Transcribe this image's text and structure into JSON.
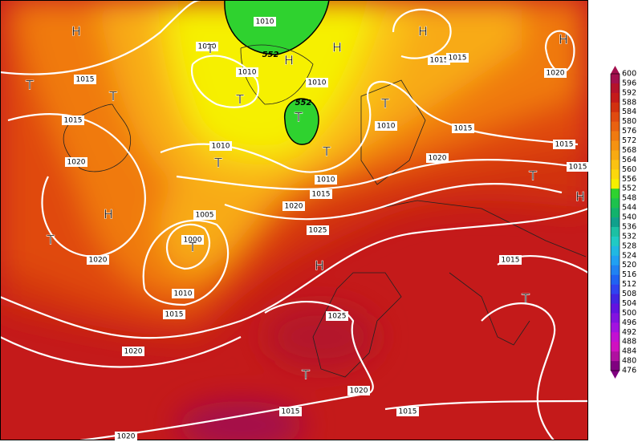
{
  "map": {
    "pressure_labels": [
      "1010",
      "1010",
      "1015",
      "1010",
      "1010",
      "1015",
      "1015",
      "1020",
      "1015",
      "1010",
      "1010",
      "1015",
      "1015",
      "1020",
      "1015",
      "1020",
      "1010",
      "1015",
      "1020",
      "1005",
      "1025",
      "1000",
      "1020",
      "1015",
      "1010",
      "1015",
      "1025",
      "1020",
      "1020",
      "1015",
      "1015",
      "1020"
    ],
    "thickness_labels": [
      "552",
      "552"
    ],
    "centers": [
      "H",
      "H",
      "H",
      "T",
      "H",
      "H",
      "T",
      "T",
      "T",
      "T",
      "T",
      "T",
      "T",
      "T",
      "H",
      "H",
      "T",
      "T",
      "H",
      "T",
      "T"
    ]
  },
  "legend": {
    "ticks": [
      "600",
      "596",
      "592",
      "588",
      "584",
      "580",
      "576",
      "572",
      "568",
      "564",
      "560",
      "556",
      "552",
      "548",
      "544",
      "540",
      "536",
      "532",
      "528",
      "524",
      "520",
      "516",
      "512",
      "508",
      "504",
      "500",
      "496",
      "492",
      "488",
      "484",
      "480",
      "476"
    ],
    "colors": [
      "#a3104e",
      "#b4122c",
      "#c41a1a",
      "#d2300f",
      "#e04a10",
      "#e96110",
      "#f07a10",
      "#f59212",
      "#f8aa12",
      "#fac212",
      "#fcd80c",
      "#f6f000",
      "#2fd22f",
      "#1dc24d",
      "#12b26c",
      "#10a08c",
      "#1cc0a4",
      "#20cac4",
      "#20b8e2",
      "#20a0f2",
      "#2082f2",
      "#2062f2",
      "#3042f0",
      "#4224e2",
      "#6212e0",
      "#8212e0",
      "#a212e0",
      "#c210d2",
      "#d010c0",
      "#b010a0",
      "#800080"
    ]
  }
}
